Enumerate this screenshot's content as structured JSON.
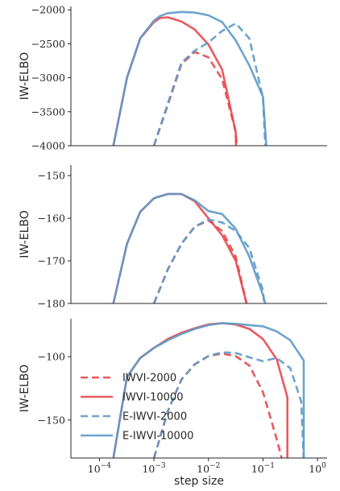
{
  "styles": {
    "IWVI-2000": {
      "color": "#e8474e",
      "dash": "9,5"
    },
    "IWVI-10000": {
      "color": "#e8474e",
      "dash": ""
    },
    "E-IWVI-2000": {
      "color": "#5d9ac8",
      "dash": "9,5"
    },
    "E-IWVI-10000": {
      "color": "#5d9ac8",
      "dash": ""
    }
  },
  "legend": [
    "IWVI-2000",
    "IWVI-10000",
    "E-IWVI-2000",
    "E-IWVI-10000"
  ],
  "chart_data": [
    {
      "type": "line",
      "ylabel": "IW-ELBO",
      "xscale": "log",
      "xlim": [
        3e-05,
        1.5
      ],
      "ylim": [
        -4000,
        -1950
      ],
      "yticks": [
        -2000,
        -2500,
        -3000,
        -3500,
        -4000
      ],
      "ytick_labels": [
        "−2000",
        "−2500",
        "−3000",
        "−3500",
        "−4000"
      ],
      "series": [
        {
          "name": "IWVI-10000",
          "x": [
            0.00018,
            0.00032,
            0.00056,
            0.001,
            0.0013,
            0.0018,
            0.0032,
            0.0056,
            0.01,
            0.0178,
            0.0316,
            0.032
          ],
          "y": [
            -4000,
            -3000,
            -2420,
            -2180,
            -2120,
            -2110,
            -2170,
            -2290,
            -2510,
            -2880,
            -3800,
            -4000
          ]
        },
        {
          "name": "IWVI-2000",
          "x": [
            0.001,
            0.0018,
            0.0032,
            0.0056,
            0.01,
            0.0178,
            0.0316,
            0.033
          ],
          "y": [
            -4000,
            -3400,
            -2800,
            -2620,
            -2700,
            -3020,
            -3800,
            -4000
          ]
        },
        {
          "name": "E-IWVI-10000",
          "x": [
            0.00018,
            0.00032,
            0.00056,
            0.001,
            0.0013,
            0.0018,
            0.0032,
            0.0056,
            0.01,
            0.0178,
            0.0316,
            0.0562,
            0.1,
            0.115
          ],
          "y": [
            -4000,
            -3000,
            -2420,
            -2160,
            -2090,
            -2050,
            -2030,
            -2040,
            -2080,
            -2180,
            -2450,
            -2820,
            -3280,
            -4000
          ]
        },
        {
          "name": "E-IWVI-2000",
          "x": [
            0.001,
            0.0018,
            0.0032,
            0.0056,
            0.01,
            0.0178,
            0.0316,
            0.0562,
            0.1,
            0.11
          ],
          "y": [
            -4000,
            -3380,
            -2780,
            -2600,
            -2480,
            -2310,
            -2200,
            -2420,
            -3300,
            -4000
          ]
        }
      ]
    },
    {
      "type": "line",
      "ylabel": "IW-ELBO",
      "xscale": "log",
      "xlim": [
        3e-05,
        1.5
      ],
      "ylim": [
        -180,
        -147.5
      ],
      "yticks": [
        -150,
        -160,
        -170,
        -180
      ],
      "ytick_labels": [
        "−150",
        "−160",
        "−170",
        "−180"
      ],
      "series": [
        {
          "name": "IWVI-10000",
          "x": [
            0.00018,
            0.00032,
            0.00056,
            0.001,
            0.0018,
            0.0032,
            0.0056,
            0.01,
            0.0178,
            0.0316,
            0.05
          ],
          "y": [
            -180,
            -166,
            -158.5,
            -155.3,
            -154.3,
            -154.3,
            -156,
            -160,
            -164,
            -170,
            -180
          ]
        },
        {
          "name": "IWVI-2000",
          "x": [
            0.001,
            0.0018,
            0.0032,
            0.0056,
            0.01,
            0.0178,
            0.0316,
            0.05
          ],
          "y": [
            -180,
            -172,
            -166,
            -162,
            -160.5,
            -163,
            -169,
            -180
          ]
        },
        {
          "name": "E-IWVI-10000",
          "x": [
            0.00018,
            0.00032,
            0.00056,
            0.001,
            0.0018,
            0.0032,
            0.0056,
            0.01,
            0.0178,
            0.0316,
            0.0562,
            0.1,
            0.11
          ],
          "y": [
            -180,
            -166,
            -158.5,
            -155.3,
            -154.3,
            -154.3,
            -155.8,
            -158.3,
            -159,
            -162.5,
            -169,
            -178,
            -180
          ]
        },
        {
          "name": "E-IWVI-2000",
          "x": [
            0.001,
            0.0018,
            0.0032,
            0.0056,
            0.01,
            0.0178,
            0.0316,
            0.0562,
            0.1,
            0.105
          ],
          "y": [
            -180,
            -172,
            -166,
            -162,
            -160.3,
            -161,
            -163,
            -167,
            -177,
            -180
          ]
        }
      ]
    },
    {
      "type": "line",
      "ylabel": "IW-ELBO",
      "xlabel": "step size",
      "xscale": "log",
      "xlim": [
        3e-05,
        1.5
      ],
      "ylim": [
        -180,
        -70
      ],
      "yticks": [
        -100,
        -150
      ],
      "ytick_labels": [
        "−100",
        "−150"
      ],
      "xticks": [
        0.0001,
        0.001,
        0.01,
        0.1,
        1
      ],
      "xtick_exponents": [
        "−4",
        "−3",
        "−2",
        "−1",
        "0"
      ],
      "legend_position": "lower-left",
      "series": [
        {
          "name": "IWVI-10000",
          "x": [
            0.00018,
            0.00032,
            0.00056,
            0.001,
            0.0018,
            0.0032,
            0.0056,
            0.01,
            0.0178,
            0.0316,
            0.0562,
            0.1,
            0.178,
            0.28,
            0.28
          ],
          "y": [
            -180,
            -116,
            -101,
            -93,
            -86,
            -81,
            -77.5,
            -74.5,
            -73.5,
            -74.5,
            -78,
            -86,
            -102,
            -132,
            -180
          ]
        },
        {
          "name": "IWVI-2000",
          "x": [
            0.001,
            0.0018,
            0.0032,
            0.0056,
            0.01,
            0.0178,
            0.0316,
            0.0562,
            0.1,
            0.178,
            0.22
          ],
          "y": [
            -180,
            -143,
            -118,
            -106,
            -99.5,
            -97.5,
            -99.5,
            -107,
            -128,
            -165,
            -180
          ]
        },
        {
          "name": "E-IWVI-10000",
          "x": [
            0.00018,
            0.00032,
            0.00056,
            0.001,
            0.0018,
            0.0032,
            0.0056,
            0.01,
            0.0178,
            0.0316,
            0.0562,
            0.1,
            0.178,
            0.316,
            0.56,
            0.56
          ],
          "y": [
            -180,
            -116,
            -101,
            -93,
            -87,
            -82,
            -78,
            -75,
            -73.5,
            -74,
            -75,
            -76,
            -80,
            -87,
            -103,
            -180
          ]
        },
        {
          "name": "E-IWVI-2000",
          "x": [
            0.001,
            0.0018,
            0.0032,
            0.0056,
            0.01,
            0.0178,
            0.0316,
            0.0562,
            0.1,
            0.178,
            0.316,
            0.5,
            0.56
          ],
          "y": [
            -180,
            -143,
            -118,
            -106,
            -99.5,
            -96.5,
            -97,
            -100.5,
            -103.5,
            -101,
            -109,
            -135,
            -180
          ]
        }
      ]
    }
  ]
}
